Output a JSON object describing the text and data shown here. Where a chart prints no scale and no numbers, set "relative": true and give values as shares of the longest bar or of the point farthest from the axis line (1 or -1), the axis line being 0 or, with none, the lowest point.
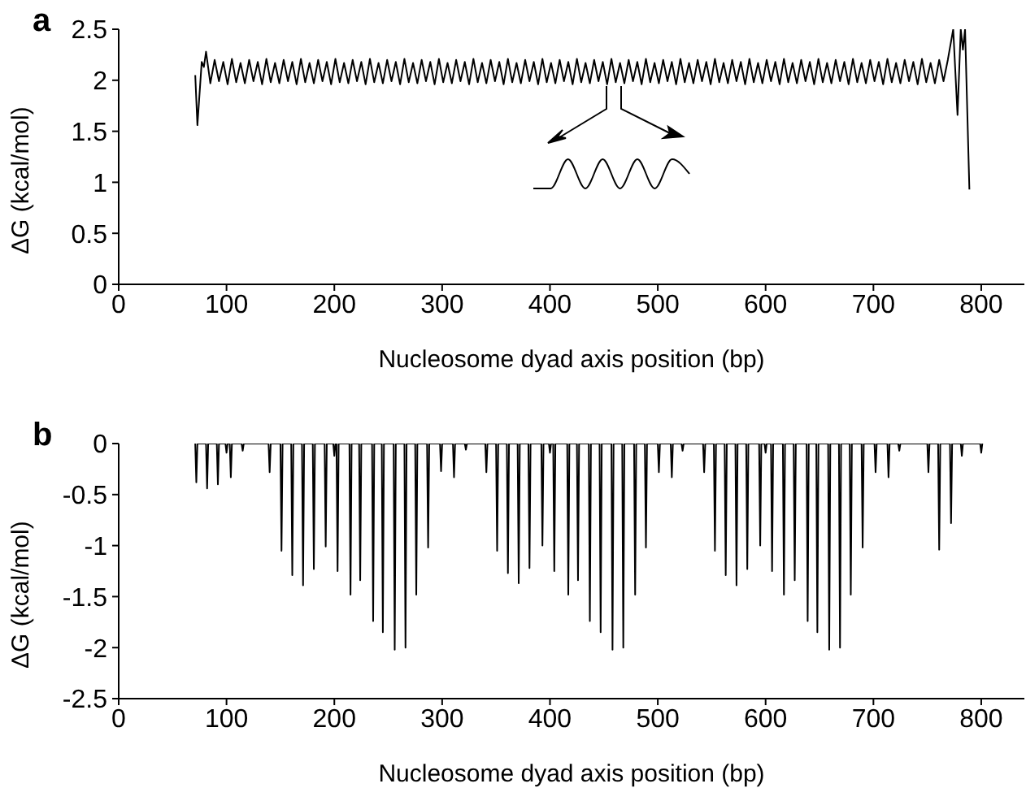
{
  "chart_data": [
    {
      "type": "line",
      "title": "a",
      "xlabel": "Nucleosome dyad axis position (bp)",
      "ylabel": "ΔG (kcal/mol)",
      "xlim": [
        0,
        840
      ],
      "ylim": [
        0,
        2.5
      ],
      "xticks": [
        0,
        100,
        200,
        300,
        400,
        500,
        600,
        700,
        800
      ],
      "yticks": [
        0,
        0.5,
        1,
        1.5,
        2,
        2.5
      ],
      "grid": false,
      "legend": false,
      "marker": "none",
      "line_style": "solid",
      "x": [
        71,
        73,
        77,
        79,
        81,
        85,
        89,
        93,
        97,
        101,
        105,
        109,
        113,
        117,
        121,
        125,
        129,
        133,
        137,
        141,
        145,
        149,
        153,
        157,
        161,
        165,
        169,
        173,
        177,
        181,
        185,
        189,
        193,
        197,
        201,
        205,
        209,
        213,
        217,
        221,
        225,
        229,
        233,
        237,
        241,
        245,
        249,
        253,
        257,
        261,
        265,
        269,
        273,
        277,
        281,
        285,
        289,
        293,
        297,
        301,
        305,
        309,
        313,
        317,
        321,
        325,
        329,
        333,
        337,
        341,
        345,
        349,
        353,
        357,
        361,
        365,
        369,
        373,
        377,
        381,
        385,
        389,
        393,
        397,
        401,
        405,
        409,
        413,
        417,
        421,
        425,
        429,
        433,
        437,
        441,
        445,
        449,
        453,
        457,
        461,
        465,
        469,
        473,
        477,
        481,
        485,
        489,
        493,
        497,
        501,
        505,
        509,
        513,
        517,
        521,
        525,
        529,
        533,
        537,
        541,
        545,
        549,
        553,
        557,
        561,
        565,
        569,
        573,
        577,
        581,
        585,
        589,
        593,
        597,
        601,
        605,
        609,
        613,
        617,
        621,
        625,
        629,
        633,
        637,
        641,
        645,
        649,
        653,
        657,
        661,
        665,
        669,
        673,
        677,
        681,
        685,
        689,
        693,
        697,
        701,
        705,
        709,
        713,
        717,
        721,
        725,
        729,
        733,
        737,
        741,
        745,
        749,
        753,
        757,
        761,
        765,
        769,
        774,
        778,
        781,
        783,
        785,
        789
      ],
      "series": [
        {
          "color": "#000000",
          "values": [
            2.05,
            1.56,
            2.18,
            2.13,
            2.28,
            1.97,
            2.2,
            1.99,
            2.18,
            1.96,
            2.21,
            1.98,
            2.17,
            1.97,
            2.2,
            1.99,
            2.18,
            1.96,
            2.21,
            1.98,
            2.17,
            1.97,
            2.2,
            1.99,
            2.18,
            1.96,
            2.21,
            1.98,
            2.17,
            1.97,
            2.2,
            1.99,
            2.18,
            1.96,
            2.21,
            1.98,
            2.17,
            1.97,
            2.2,
            1.99,
            2.18,
            1.96,
            2.21,
            1.98,
            2.17,
            1.97,
            2.2,
            1.99,
            2.18,
            1.96,
            2.21,
            1.98,
            2.17,
            1.97,
            2.2,
            1.99,
            2.18,
            1.96,
            2.21,
            1.98,
            2.17,
            1.97,
            2.2,
            1.99,
            2.18,
            1.96,
            2.21,
            1.98,
            2.17,
            1.97,
            2.2,
            1.99,
            2.18,
            1.96,
            2.21,
            1.98,
            2.17,
            1.97,
            2.2,
            1.99,
            2.18,
            1.96,
            2.21,
            1.98,
            2.17,
            1.97,
            2.2,
            1.99,
            2.18,
            1.96,
            2.21,
            1.98,
            2.17,
            1.97,
            2.2,
            1.99,
            2.18,
            1.96,
            2.21,
            1.98,
            2.17,
            1.97,
            2.2,
            1.99,
            2.18,
            1.96,
            2.21,
            1.98,
            2.17,
            1.97,
            2.2,
            1.99,
            2.18,
            1.96,
            2.21,
            1.98,
            2.17,
            1.97,
            2.2,
            1.99,
            2.18,
            1.96,
            2.21,
            1.98,
            2.17,
            1.97,
            2.2,
            1.99,
            2.18,
            1.96,
            2.21,
            1.98,
            2.17,
            1.97,
            2.2,
            1.99,
            2.18,
            1.96,
            2.21,
            1.98,
            2.17,
            1.97,
            2.2,
            1.99,
            2.18,
            1.96,
            2.21,
            1.98,
            2.17,
            1.97,
            2.2,
            1.99,
            2.18,
            1.96,
            2.21,
            1.98,
            2.17,
            1.97,
            2.2,
            1.99,
            2.18,
            1.96,
            2.21,
            1.98,
            2.17,
            1.97,
            2.2,
            1.99,
            2.18,
            1.96,
            2.21,
            1.98,
            2.17,
            1.97,
            2.2,
            1.99,
            2.2,
            2.5,
            1.66,
            2.5,
            2.3,
            2.5,
            0.93
          ]
        }
      ]
    },
    {
      "type": "line",
      "relative": true,
      "marker": "none",
      "line_style": "solid",
      "categories": [
        null,
        null,
        null,
        null,
        null,
        null,
        null,
        null,
        null,
        null
      ],
      "series": [
        {
          "color": "#000000",
          "values": [
            0,
            0,
            1,
            0,
            1,
            0,
            1,
            0,
            1,
            0.5
          ]
        }
      ]
    },
    {
      "type": "line",
      "title": "b",
      "xlabel": "Nucleosome dyad axis position (bp)",
      "ylabel": "ΔG (kcal/mol)",
      "xlim": [
        0,
        840
      ],
      "ylim": [
        -2.5,
        0
      ],
      "xticks": [
        0,
        100,
        200,
        300,
        400,
        500,
        600,
        700,
        800
      ],
      "yticks": [
        -2.5,
        -2,
        -1.5,
        -1,
        -0.5,
        0
      ],
      "grid": false,
      "legend": false,
      "marker": "none",
      "line_style": "solid",
      "x": [
        71,
        72,
        73,
        81,
        82,
        83,
        91,
        92,
        93,
        99,
        100,
        101,
        103,
        104,
        105,
        114,
        115,
        116,
        139,
        140,
        141,
        150,
        151,
        152,
        160,
        161,
        162,
        170,
        171,
        172,
        180,
        181,
        182,
        191,
        192,
        193,
        199,
        200,
        201,
        202,
        203,
        204,
        214,
        215,
        216,
        223,
        224,
        225,
        235,
        236,
        237,
        244,
        245,
        246,
        255,
        256,
        257,
        265,
        266,
        267,
        275,
        276,
        277,
        286,
        287,
        288,
        298,
        299,
        300,
        310,
        311,
        312,
        321,
        322,
        323,
        340,
        341,
        342,
        350,
        351,
        352,
        360,
        361,
        362,
        370,
        371,
        372,
        380,
        381,
        382,
        392,
        393,
        394,
        399,
        400,
        401,
        403,
        404,
        405,
        416,
        417,
        418,
        425,
        426,
        427,
        436,
        437,
        438,
        446,
        447,
        448,
        457,
        458,
        459,
        467,
        468,
        469,
        478,
        479,
        480,
        488,
        489,
        490,
        500,
        501,
        502,
        512,
        513,
        514,
        522,
        523,
        524,
        542,
        543,
        544,
        552,
        553,
        554,
        562,
        563,
        564,
        572,
        573,
        574,
        582,
        583,
        584,
        594,
        595,
        596,
        599,
        600,
        601,
        605,
        606,
        607,
        616,
        617,
        618,
        626,
        627,
        628,
        638,
        639,
        640,
        647,
        648,
        649,
        658,
        659,
        660,
        668,
        669,
        670,
        678,
        679,
        680,
        689,
        690,
        691,
        701,
        702,
        703,
        713,
        714,
        715,
        723,
        724,
        725,
        750,
        751,
        752,
        760,
        761,
        762,
        771,
        772,
        773,
        781,
        782,
        783,
        799,
        800,
        801
      ],
      "series": [
        {
          "color": "#000000",
          "values": [
            0,
            -0.38,
            0,
            0,
            -0.44,
            0,
            0,
            -0.4,
            0,
            0,
            -0.09,
            0,
            0,
            -0.33,
            0,
            0,
            -0.07,
            0,
            0,
            -0.28,
            0,
            0,
            -1.05,
            0,
            0,
            -1.29,
            0,
            0,
            -1.39,
            0,
            0,
            -1.23,
            0,
            0,
            -1.01,
            0,
            0,
            -0.12,
            0,
            0,
            -1.25,
            0,
            0,
            -1.48,
            0,
            0,
            -1.34,
            0,
            0,
            -1.74,
            0,
            0,
            -1.85,
            0,
            0,
            -2.02,
            0,
            0,
            -2,
            0,
            0,
            -1.48,
            0,
            0,
            -1.02,
            0,
            0,
            -0.27,
            0,
            0,
            -0.33,
            0,
            0,
            -0.06,
            0,
            0,
            -0.28,
            0,
            0,
            -1.05,
            0,
            0,
            -1.27,
            0,
            0,
            -1.37,
            0,
            0,
            -1.22,
            0,
            0,
            -1,
            0,
            0,
            -0.09,
            0,
            0,
            -1.25,
            0,
            0,
            -1.48,
            0,
            0,
            -1.34,
            0,
            0,
            -1.74,
            0,
            0,
            -1.85,
            0,
            0,
            -2.02,
            0,
            0,
            -2,
            0,
            0,
            -1.48,
            0,
            0,
            -1.02,
            0,
            0,
            -0.28,
            0,
            0,
            -0.33,
            0,
            0,
            -0.07,
            0,
            0,
            -0.28,
            0,
            0,
            -1.05,
            0,
            0,
            -1.29,
            0,
            0,
            -1.39,
            0,
            0,
            -1.23,
            0,
            0,
            -1,
            0,
            0,
            -0.09,
            0,
            0,
            -1.25,
            0,
            0,
            -1.48,
            0,
            0,
            -1.34,
            0,
            0,
            -1.74,
            0,
            0,
            -1.85,
            0,
            0,
            -2.02,
            0,
            0,
            -2,
            0,
            0,
            -1.48,
            0,
            0,
            -1.02,
            0,
            0,
            -0.28,
            0,
            0,
            -0.33,
            0,
            0,
            -0.07,
            0,
            0,
            -0.28,
            0,
            0,
            -1.04,
            0,
            0,
            -0.78,
            0,
            0,
            -0.12,
            0,
            0,
            -0.09,
            0
          ]
        }
      ]
    }
  ]
}
